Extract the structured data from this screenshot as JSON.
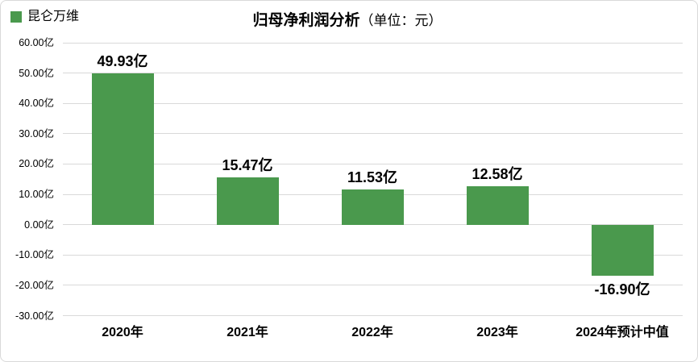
{
  "legend": {
    "label": "昆仑万维",
    "swatch_color": "#4a994d"
  },
  "title": {
    "main": "归母净利润分析",
    "unit": "（单位：元）"
  },
  "colors": {
    "bar": "#4a994d",
    "gridline": "#d9d9d9",
    "text": "#000000",
    "border": "#d9d9d9"
  },
  "chart_data": {
    "type": "bar",
    "title": "归母净利润分析（单位：元）",
    "legend_entries": [
      "昆仑万维"
    ],
    "legend_position": "top-left",
    "grid": true,
    "categories": [
      "2020年",
      "2021年",
      "2022年",
      "2023年",
      "2024年预计中值"
    ],
    "series": [
      {
        "name": "昆仑万维",
        "values": [
          49.93,
          15.47,
          11.53,
          12.58,
          -16.9
        ]
      }
    ],
    "value_labels": [
      "49.93亿",
      "15.47亿",
      "11.53亿",
      "12.58亿",
      "-16.90亿"
    ],
    "ylim": [
      -30,
      60
    ],
    "ytick_step": 10,
    "yticks": [
      {
        "value": 60,
        "label": "60.00亿"
      },
      {
        "value": 50,
        "label": "50.00亿"
      },
      {
        "value": 40,
        "label": "40.00亿"
      },
      {
        "value": 30,
        "label": "30.00亿"
      },
      {
        "value": 20,
        "label": "20.00亿"
      },
      {
        "value": 10,
        "label": "10.00亿"
      },
      {
        "value": 0,
        "label": "0.00亿"
      },
      {
        "value": -10,
        "label": "-10.00亿"
      },
      {
        "value": -20,
        "label": "-20.00亿"
      },
      {
        "value": -30,
        "label": "-30.00亿"
      }
    ],
    "xlabel": "",
    "ylabel": ""
  }
}
